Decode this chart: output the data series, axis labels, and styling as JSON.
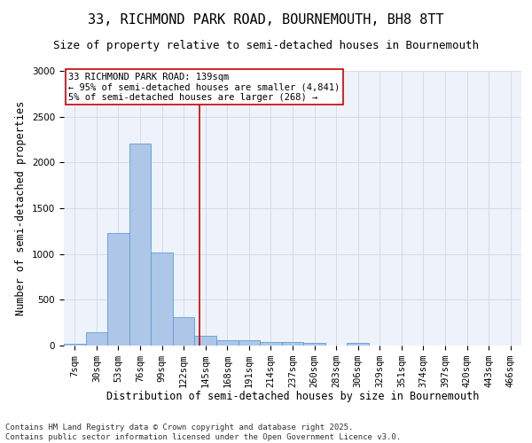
{
  "title_line1": "33, RICHMOND PARK ROAD, BOURNEMOUTH, BH8 8TT",
  "title_line2": "Size of property relative to semi-detached houses in Bournemouth",
  "xlabel": "Distribution of semi-detached houses by size in Bournemouth",
  "ylabel": "Number of semi-detached properties",
  "footnote": "Contains HM Land Registry data © Crown copyright and database right 2025.\nContains public sector information licensed under the Open Government Licence v3.0.",
  "bin_labels": [
    "7sqm",
    "30sqm",
    "53sqm",
    "76sqm",
    "99sqm",
    "122sqm",
    "145sqm",
    "168sqm",
    "191sqm",
    "214sqm",
    "237sqm",
    "260sqm",
    "283sqm",
    "306sqm",
    "329sqm",
    "351sqm",
    "374sqm",
    "397sqm",
    "420sqm",
    "443sqm",
    "466sqm"
  ],
  "bar_heights": [
    20,
    150,
    1230,
    2210,
    1020,
    310,
    105,
    60,
    55,
    40,
    35,
    25,
    0,
    25,
    0,
    0,
    0,
    0,
    0,
    0,
    0
  ],
  "bar_color": "#aec6e8",
  "bar_edge_color": "#5a9fd4",
  "bar_width": 1.0,
  "ylim": [
    0,
    3000
  ],
  "yticks": [
    0,
    500,
    1000,
    1500,
    2000,
    2500,
    3000
  ],
  "property_size": 139,
  "property_label": "33 RICHMOND PARK ROAD: 139sqm",
  "pct_smaller_label": "← 95% of semi-detached houses are smaller (4,841)",
  "pct_larger_label": "5% of semi-detached houses are larger (268) →",
  "vline_color": "#cc0000",
  "annotation_box_color": "#cc0000",
  "grid_color": "#d0d8e8",
  "background_color": "#eef2fa",
  "title_fontsize": 11,
  "subtitle_fontsize": 9,
  "axis_label_fontsize": 8.5,
  "tick_fontsize": 7.5,
  "annotation_fontsize": 7.5,
  "footnote_fontsize": 6.5
}
